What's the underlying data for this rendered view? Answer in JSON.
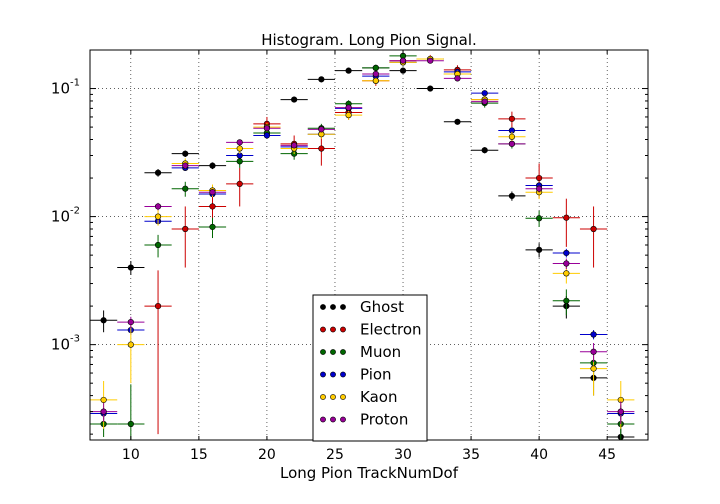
{
  "chart_data": {
    "type": "scatter",
    "title": "Histogram. Long Pion Signal.",
    "xlabel": "Long Pion TrackNumDof",
    "ylabel": "",
    "xlim": [
      7,
      48
    ],
    "ylim": [
      0.00018,
      0.2
    ],
    "yscale": "log",
    "grid": true,
    "legend_position": "lower-center",
    "x_ticks": [
      10,
      15,
      20,
      25,
      30,
      35,
      40,
      45
    ],
    "x_tick_labels": [
      "10",
      "15",
      "20",
      "25",
      "30",
      "35",
      "40",
      "45"
    ],
    "y_ticks": [
      0.001,
      0.01,
      0.1
    ],
    "y_tick_labels": [
      "10",
      "10",
      "10"
    ],
    "y_tick_exponents": [
      "-3",
      "-2",
      "-1"
    ],
    "x_bin_halfwidth": 1,
    "series": [
      {
        "name": "Ghost",
        "color": "#000000",
        "x": [
          8,
          10,
          12,
          14,
          16,
          22,
          24,
          26,
          28,
          30,
          32,
          34,
          36,
          38,
          40,
          42,
          44,
          46
        ],
        "y": [
          0.00155,
          0.004,
          0.022,
          0.031,
          0.025,
          0.082,
          0.118,
          0.138,
          0.145,
          0.138,
          0.1,
          0.055,
          0.033,
          0.0145,
          0.0055,
          0.002,
          0.00055,
          0.00019
        ],
        "yerr": [
          0.0003,
          0.0005,
          0.0015,
          0.0018,
          0.0015,
          0.003,
          0.004,
          0.004,
          0.004,
          0.004,
          0.003,
          0.0025,
          0.0018,
          0.0012,
          0.0007,
          0.0004,
          0.00015,
          0.0001
        ]
      },
      {
        "name": "Electron",
        "color": "#cc0000",
        "x": [
          12,
          14,
          16,
          18,
          20,
          22,
          24,
          26,
          28,
          30,
          32,
          34,
          36,
          38,
          40,
          42,
          44
        ],
        "y": [
          0.002,
          0.008,
          0.012,
          0.018,
          0.053,
          0.037,
          0.034,
          0.065,
          0.115,
          0.165,
          0.17,
          0.14,
          0.082,
          0.058,
          0.02,
          0.0098,
          0.008
        ],
        "yerr": [
          0.0018,
          0.004,
          0.0035,
          0.006,
          0.007,
          0.006,
          0.009,
          0.008,
          0.01,
          0.013,
          0.013,
          0.012,
          0.009,
          0.008,
          0.006,
          0.004,
          0.004
        ]
      },
      {
        "name": "Muon",
        "color": "#006600",
        "x": [
          8,
          10,
          12,
          14,
          16,
          18,
          20,
          22,
          24,
          26,
          28,
          30,
          32,
          34,
          36,
          38,
          40,
          42,
          44,
          46
        ],
        "y": [
          0.00024,
          0.00024,
          0.006,
          0.0165,
          0.0083,
          0.027,
          0.045,
          0.031,
          0.049,
          0.076,
          0.145,
          0.18,
          0.17,
          0.13,
          0.077,
          0.037,
          0.0097,
          0.0022,
          0.00072,
          0.00024
        ],
        "yerr": [
          5e-05,
          0.00025,
          0.0012,
          0.0022,
          0.0015,
          0.003,
          0.004,
          0.0032,
          0.004,
          0.005,
          0.007,
          0.008,
          0.008,
          0.007,
          0.006,
          0.003,
          0.0014,
          0.0005,
          0.0002,
          0.0001
        ]
      },
      {
        "name": "Pion",
        "color": "#0000cc",
        "x": [
          8,
          10,
          12,
          14,
          16,
          18,
          20,
          22,
          24,
          26,
          28,
          30,
          32,
          34,
          36,
          38,
          40,
          42,
          44,
          46
        ],
        "y": [
          0.00029,
          0.0013,
          0.0092,
          0.024,
          0.015,
          0.03,
          0.043,
          0.035,
          0.044,
          0.07,
          0.125,
          0.16,
          0.17,
          0.135,
          0.092,
          0.047,
          0.0175,
          0.0052,
          0.0012,
          0.00029
        ],
        "yerr": [
          3e-05,
          0.0001,
          0.0005,
          0.001,
          0.0007,
          0.001,
          0.0015,
          0.0013,
          0.0015,
          0.002,
          0.003,
          0.004,
          0.004,
          0.003,
          0.003,
          0.0018,
          0.0009,
          0.0004,
          0.0001,
          4e-05
        ]
      },
      {
        "name": "Kaon",
        "color": "#ffcc00",
        "x": [
          8,
          10,
          12,
          14,
          16,
          18,
          20,
          22,
          24,
          26,
          28,
          30,
          32,
          34,
          36,
          38,
          40,
          42,
          44,
          46
        ],
        "y": [
          0.00037,
          0.001,
          0.01,
          0.026,
          0.016,
          0.034,
          0.05,
          0.034,
          0.044,
          0.062,
          0.115,
          0.16,
          0.17,
          0.13,
          0.082,
          0.042,
          0.0155,
          0.0036,
          0.00065,
          0.00037
        ],
        "yerr": [
          0.00015,
          0.0005,
          0.0015,
          0.0025,
          0.0018,
          0.003,
          0.004,
          0.0032,
          0.0035,
          0.005,
          0.007,
          0.009,
          0.009,
          0.008,
          0.006,
          0.004,
          0.0018,
          0.0006,
          0.00025,
          0.00015
        ]
      },
      {
        "name": "Proton",
        "color": "#990099",
        "x": [
          8,
          10,
          12,
          14,
          16,
          18,
          20,
          22,
          24,
          26,
          28,
          30,
          32,
          34,
          36,
          38,
          40,
          42,
          44,
          46
        ],
        "y": [
          0.0003,
          0.0015,
          0.012,
          0.025,
          0.0155,
          0.038,
          0.049,
          0.036,
          0.048,
          0.071,
          0.13,
          0.165,
          0.165,
          0.12,
          0.079,
          0.037,
          0.0165,
          0.0043,
          0.00088,
          0.0003
        ],
        "yerr": [
          5e-05,
          0.00015,
          0.0008,
          0.0012,
          0.0009,
          0.0015,
          0.002,
          0.0016,
          0.0019,
          0.0025,
          0.004,
          0.005,
          0.005,
          0.004,
          0.003,
          0.0018,
          0.0011,
          0.0004,
          0.00015,
          6e-05
        ]
      }
    ]
  }
}
